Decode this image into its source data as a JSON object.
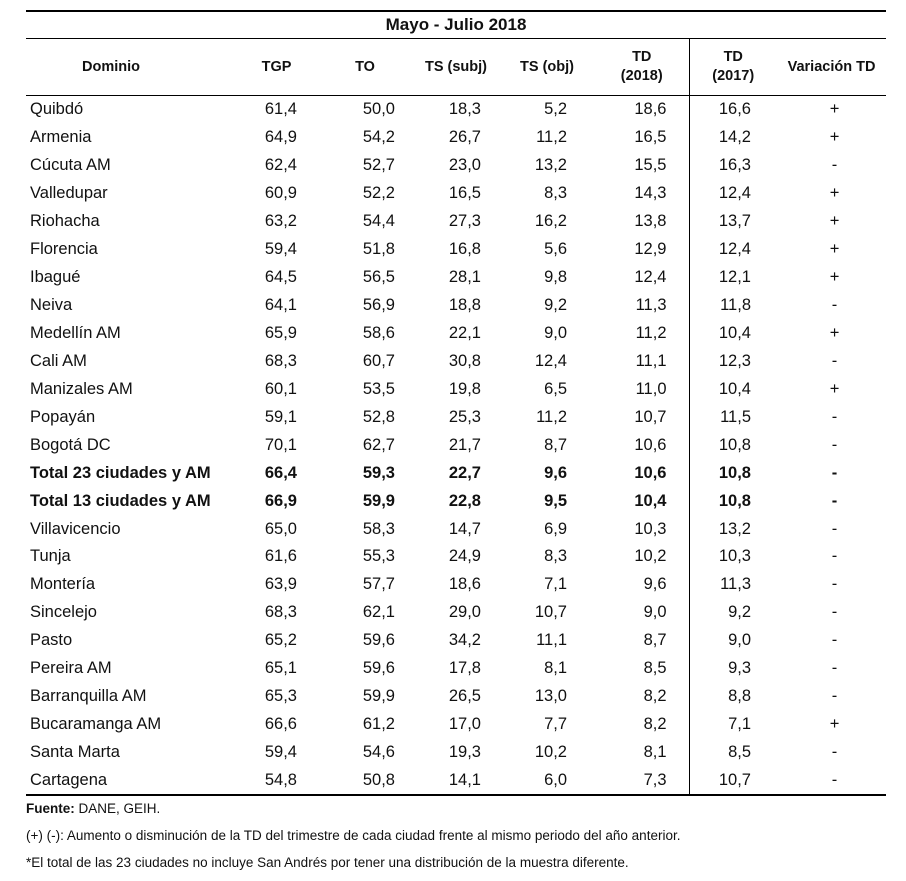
{
  "table": {
    "title": "Mayo - Julio 2018",
    "headers": {
      "dominio": "Dominio",
      "tgp": "TGP",
      "to": "TO",
      "ts_subj": "TS (subj)",
      "ts_obj": "TS (obj)",
      "td2018_l1": "TD",
      "td2018_l2": "(2018)",
      "td2017_l1": "TD",
      "td2017_l2": "(2017)",
      "variacion": "Variación TD"
    },
    "rows": [
      {
        "dominio": "Quibdó",
        "tgp": "61,4",
        "to": "50,0",
        "ts_subj": "18,3",
        "ts_obj": "5,2",
        "td2018": "18,6",
        "td2017": "16,6",
        "var": "+",
        "bold": false
      },
      {
        "dominio": "Armenia",
        "tgp": "64,9",
        "to": "54,2",
        "ts_subj": "26,7",
        "ts_obj": "11,2",
        "td2018": "16,5",
        "td2017": "14,2",
        "var": "+",
        "bold": false
      },
      {
        "dominio": "Cúcuta AM",
        "tgp": "62,4",
        "to": "52,7",
        "ts_subj": "23,0",
        "ts_obj": "13,2",
        "td2018": "15,5",
        "td2017": "16,3",
        "var": "-",
        "bold": false
      },
      {
        "dominio": "Valledupar",
        "tgp": "60,9",
        "to": "52,2",
        "ts_subj": "16,5",
        "ts_obj": "8,3",
        "td2018": "14,3",
        "td2017": "12,4",
        "var": "+",
        "bold": false
      },
      {
        "dominio": "Riohacha",
        "tgp": "63,2",
        "to": "54,4",
        "ts_subj": "27,3",
        "ts_obj": "16,2",
        "td2018": "13,8",
        "td2017": "13,7",
        "var": "+",
        "bold": false
      },
      {
        "dominio": "Florencia",
        "tgp": "59,4",
        "to": "51,8",
        "ts_subj": "16,8",
        "ts_obj": "5,6",
        "td2018": "12,9",
        "td2017": "12,4",
        "var": "+",
        "bold": false
      },
      {
        "dominio": "Ibagué",
        "tgp": "64,5",
        "to": "56,5",
        "ts_subj": "28,1",
        "ts_obj": "9,8",
        "td2018": "12,4",
        "td2017": "12,1",
        "var": "+",
        "bold": false
      },
      {
        "dominio": "Neiva",
        "tgp": "64,1",
        "to": "56,9",
        "ts_subj": "18,8",
        "ts_obj": "9,2",
        "td2018": "11,3",
        "td2017": "11,8",
        "var": "-",
        "bold": false
      },
      {
        "dominio": "Medellín AM",
        "tgp": "65,9",
        "to": "58,6",
        "ts_subj": "22,1",
        "ts_obj": "9,0",
        "td2018": "11,2",
        "td2017": "10,4",
        "var": "+",
        "bold": false
      },
      {
        "dominio": "Cali AM",
        "tgp": "68,3",
        "to": "60,7",
        "ts_subj": "30,8",
        "ts_obj": "12,4",
        "td2018": "11,1",
        "td2017": "12,3",
        "var": "-",
        "bold": false
      },
      {
        "dominio": "Manizales AM",
        "tgp": "60,1",
        "to": "53,5",
        "ts_subj": "19,8",
        "ts_obj": "6,5",
        "td2018": "11,0",
        "td2017": "10,4",
        "var": "+",
        "bold": false
      },
      {
        "dominio": "Popayán",
        "tgp": "59,1",
        "to": "52,8",
        "ts_subj": "25,3",
        "ts_obj": "11,2",
        "td2018": "10,7",
        "td2017": "11,5",
        "var": "-",
        "bold": false
      },
      {
        "dominio": "Bogotá DC",
        "tgp": "70,1",
        "to": "62,7",
        "ts_subj": "21,7",
        "ts_obj": "8,7",
        "td2018": "10,6",
        "td2017": "10,8",
        "var": "-",
        "bold": false
      },
      {
        "dominio": "Total 23 ciudades y AM",
        "tgp": "66,4",
        "to": "59,3",
        "ts_subj": "22,7",
        "ts_obj": "9,6",
        "td2018": "10,6",
        "td2017": "10,8",
        "var": "-",
        "bold": true
      },
      {
        "dominio": "Total 13 ciudades y AM",
        "tgp": "66,9",
        "to": "59,9",
        "ts_subj": "22,8",
        "ts_obj": "9,5",
        "td2018": "10,4",
        "td2017": "10,8",
        "var": "-",
        "bold": true
      },
      {
        "dominio": "Villavicencio",
        "tgp": "65,0",
        "to": "58,3",
        "ts_subj": "14,7",
        "ts_obj": "6,9",
        "td2018": "10,3",
        "td2017": "13,2",
        "var": "-",
        "bold": false
      },
      {
        "dominio": "Tunja",
        "tgp": "61,6",
        "to": "55,3",
        "ts_subj": "24,9",
        "ts_obj": "8,3",
        "td2018": "10,2",
        "td2017": "10,3",
        "var": "-",
        "bold": false
      },
      {
        "dominio": "Montería",
        "tgp": "63,9",
        "to": "57,7",
        "ts_subj": "18,6",
        "ts_obj": "7,1",
        "td2018": "9,6",
        "td2017": "11,3",
        "var": "-",
        "bold": false
      },
      {
        "dominio": "Sincelejo",
        "tgp": "68,3",
        "to": "62,1",
        "ts_subj": "29,0",
        "ts_obj": "10,7",
        "td2018": "9,0",
        "td2017": "9,2",
        "var": "-",
        "bold": false
      },
      {
        "dominio": "Pasto",
        "tgp": "65,2",
        "to": "59,6",
        "ts_subj": "34,2",
        "ts_obj": "11,1",
        "td2018": "8,7",
        "td2017": "9,0",
        "var": "-",
        "bold": false
      },
      {
        "dominio": "Pereira AM",
        "tgp": "65,1",
        "to": "59,6",
        "ts_subj": "17,8",
        "ts_obj": "8,1",
        "td2018": "8,5",
        "td2017": "9,3",
        "var": "-",
        "bold": false
      },
      {
        "dominio": "Barranquilla AM",
        "tgp": "65,3",
        "to": "59,9",
        "ts_subj": "26,5",
        "ts_obj": "13,0",
        "td2018": "8,2",
        "td2017": "8,8",
        "var": "-",
        "bold": false
      },
      {
        "dominio": "Bucaramanga AM",
        "tgp": "66,6",
        "to": "61,2",
        "ts_subj": "17,0",
        "ts_obj": "7,7",
        "td2018": "8,2",
        "td2017": "7,1",
        "var": "+",
        "bold": false
      },
      {
        "dominio": "Santa Marta",
        "tgp": "59,4",
        "to": "54,6",
        "ts_subj": "19,3",
        "ts_obj": "10,2",
        "td2018": "8,1",
        "td2017": "8,5",
        "var": "-",
        "bold": false
      },
      {
        "dominio": "Cartagena",
        "tgp": "54,8",
        "to": "50,8",
        "ts_subj": "14,1",
        "ts_obj": "6,0",
        "td2018": "7,3",
        "td2017": "10,7",
        "var": "-",
        "bold": false
      }
    ]
  },
  "notes": {
    "source_label": "Fuente:",
    "source_text": " DANE, GEIH.",
    "note1": "(+) (-): Aumento o disminución de la TD del trimestre de cada ciudad frente al mismo periodo del año anterior.",
    "note2": "*El total de las 23 ciudades no incluye San Andrés por tener una distribución de la muestra diferente."
  }
}
